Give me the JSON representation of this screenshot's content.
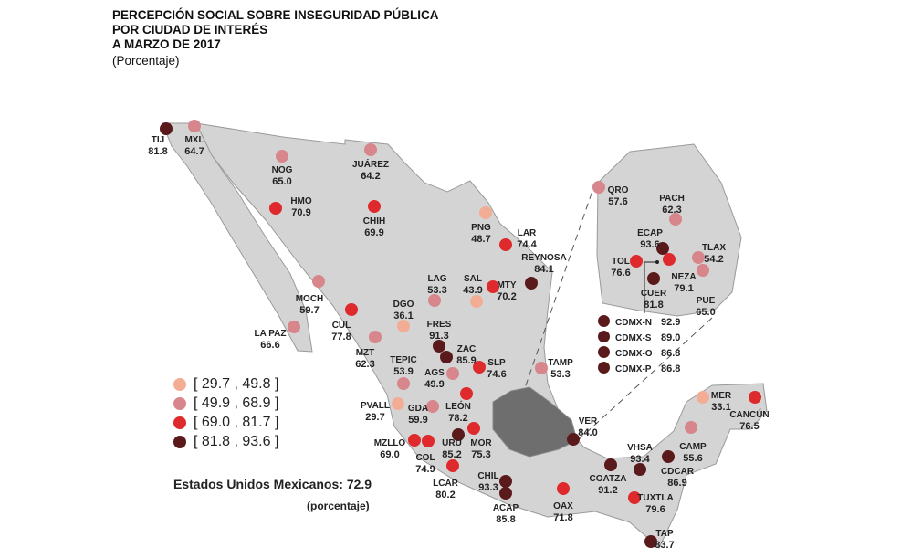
{
  "title": [
    "PERCEPCIÓN SOCIAL SOBRE INSEGURIDAD PÚBLICA",
    "POR CIUDAD DE INTERÉS",
    "A MARZO DE 2017"
  ],
  "subtitle": "(Porcentaje)",
  "legend": [
    {
      "label": "[ 29.7 , 49.8 ]",
      "color": "#f4ad95"
    },
    {
      "label": "[ 49.9 , 68.9 ]",
      "color": "#d7868b"
    },
    {
      "label": "[ 69.0 , 81.7 ]",
      "color": "#de2a2c"
    },
    {
      "label": "[ 81.8 , 93.6 ]",
      "color": "#5a1a1c"
    }
  ],
  "national": {
    "label": "Estados Unidos Mexicanos: 72.9",
    "unit": "(porcentaje)"
  },
  "map_colors": {
    "land": "#d4d4d4",
    "border": "#9a9a9a",
    "highlight_region": "#6e6e6e"
  },
  "cities": [
    {
      "name": "TIJ",
      "value": "81.8",
      "class": 3
    },
    {
      "name": "MXL",
      "value": "64.7",
      "class": 1
    },
    {
      "name": "NOG",
      "value": "65.0",
      "class": 1
    },
    {
      "name": "JUÁREZ",
      "value": "64.2",
      "class": 1
    },
    {
      "name": "HMO",
      "value": "70.9",
      "class": 2
    },
    {
      "name": "CHIH",
      "value": "69.9",
      "class": 2
    },
    {
      "name": "PNG",
      "value": "48.7",
      "class": 0
    },
    {
      "name": "LAR",
      "value": "74.4",
      "class": 2
    },
    {
      "name": "REYNOSA",
      "value": "84.1",
      "class": 3
    },
    {
      "name": "MTY",
      "value": "70.2",
      "class": 2
    },
    {
      "name": "SAL",
      "value": "43.9",
      "class": 0
    },
    {
      "name": "LAG",
      "value": "53.3",
      "class": 1
    },
    {
      "name": "DGO",
      "value": "36.1",
      "class": 0
    },
    {
      "name": "FRES",
      "value": "91.3",
      "class": 3
    },
    {
      "name": "ZAC",
      "value": "85.9",
      "class": 3
    },
    {
      "name": "SLP",
      "value": "74.6",
      "class": 2
    },
    {
      "name": "TAMP",
      "value": "53.3",
      "class": 1
    },
    {
      "name": "AGS",
      "value": "49.9",
      "class": 1
    },
    {
      "name": "MOCH",
      "value": "59.7",
      "class": 1
    },
    {
      "name": "LA PAZ",
      "value": "66.6",
      "class": 1
    },
    {
      "name": "CUL",
      "value": "77.8",
      "class": 2
    },
    {
      "name": "MZT",
      "value": "62.3",
      "class": 1
    },
    {
      "name": "TEPIC",
      "value": "53.9",
      "class": 1
    },
    {
      "name": "PVALL",
      "value": "29.7",
      "class": 0
    },
    {
      "name": "GDA",
      "value": "59.9",
      "class": 1
    },
    {
      "name": "LEÓN",
      "value": "78.2",
      "class": 2
    },
    {
      "name": "URU",
      "value": "85.2",
      "class": 3
    },
    {
      "name": "MOR",
      "value": "75.3",
      "class": 2
    },
    {
      "name": "MZLLO",
      "value": "69.0",
      "class": 2
    },
    {
      "name": "COL",
      "value": "74.9",
      "class": 2
    },
    {
      "name": "LCAR",
      "value": "80.2",
      "class": 2
    },
    {
      "name": "CHIL",
      "value": "93.3",
      "class": 3
    },
    {
      "name": "ACAP",
      "value": "85.8",
      "class": 3
    },
    {
      "name": "OAX",
      "value": "71.8",
      "class": 2
    },
    {
      "name": "VER",
      "value": "84.0",
      "class": 3
    },
    {
      "name": "COATZA",
      "value": "91.2",
      "class": 3
    },
    {
      "name": "VHSA",
      "value": "93.4",
      "class": 3
    },
    {
      "name": "CDCAR",
      "value": "86.9",
      "class": 3
    },
    {
      "name": "TUXTLA",
      "value": "79.6",
      "class": 2
    },
    {
      "name": "TAP",
      "value": "83.7",
      "class": 3
    },
    {
      "name": "CAMP",
      "value": "55.6",
      "class": 1
    },
    {
      "name": "MER",
      "value": "33.1",
      "class": 0
    },
    {
      "name": "CANCÚN",
      "value": "76.5",
      "class": 2
    },
    {
      "name": "QRO",
      "value": "57.6",
      "class": 1
    },
    {
      "name": "PACH",
      "value": "62.3",
      "class": 1
    },
    {
      "name": "ECAP",
      "value": "93.6",
      "class": 3
    },
    {
      "name": "NEZA",
      "value": "79.1",
      "class": 2
    },
    {
      "name": "TOL",
      "value": "76.6",
      "class": 2
    },
    {
      "name": "CUER",
      "value": "81.8",
      "class": 3
    },
    {
      "name": "TLAX",
      "value": "54.2",
      "class": 1
    },
    {
      "name": "PUE",
      "value": "65.0",
      "class": 1
    }
  ],
  "cdmx": [
    {
      "name": "CDMX-N",
      "value": "92.9",
      "class": 3
    },
    {
      "name": "CDMX-S",
      "value": "89.0",
      "class": 3
    },
    {
      "name": "CDMX-O",
      "value": "86.8",
      "class": 3
    },
    {
      "name": "CDMX-P",
      "value": "86.8",
      "class": 3
    }
  ]
}
